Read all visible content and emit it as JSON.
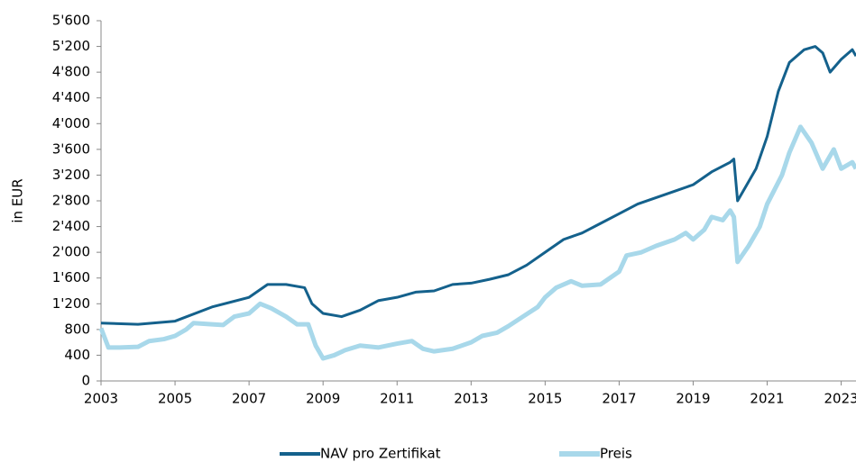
{
  "chart_data": {
    "type": "line",
    "ylabel": "in EUR",
    "xlim": [
      2003,
      2023.4
    ],
    "xticks": [
      2003,
      2005,
      2007,
      2009,
      2011,
      2013,
      2015,
      2017,
      2019,
      2021,
      2023
    ],
    "ylim": [
      0,
      5600
    ],
    "yticks": [
      0,
      400,
      800,
      {
        "value": 1200,
        "label": "1'200"
      },
      {
        "value": 1600,
        "label": "1'600"
      },
      {
        "value": 2000,
        "label": "2'000"
      },
      {
        "value": 2400,
        "label": "2'400"
      },
      {
        "value": 2800,
        "label": "2'800"
      },
      {
        "value": 3200,
        "label": "3'200"
      },
      {
        "value": 3600,
        "label": "3'600"
      },
      {
        "value": 4000,
        "label": "4'000"
      },
      {
        "value": 4400,
        "label": "4'400"
      },
      {
        "value": 4800,
        "label": "4'800"
      },
      {
        "value": 5200,
        "label": "5'200"
      },
      {
        "value": 5600,
        "label": "5'600"
      }
    ],
    "legend": "bottom",
    "series": [
      {
        "name": "NAV pro Zertifikat",
        "color": "#14618c",
        "x": [
          2003,
          2004,
          2005,
          2006,
          2007,
          2007.5,
          2008,
          2008.5,
          2008.7,
          2009,
          2009.5,
          2010,
          2010.5,
          2011,
          2011.5,
          2012,
          2012.5,
          2013,
          2013.5,
          2014,
          2014.5,
          2015,
          2015.5,
          2016,
          2016.5,
          2017,
          2017.5,
          2018,
          2018.5,
          2019,
          2019.5,
          2020,
          2020.1,
          2020.2,
          2020.4,
          2020.7,
          2021,
          2021.3,
          2021.6,
          2022,
          2022.3,
          2022.5,
          2022.7,
          2023,
          2023.3,
          2023.4
        ],
        "values": [
          900,
          880,
          930,
          1150,
          1300,
          1500,
          1500,
          1450,
          1200,
          1050,
          1000,
          1100,
          1250,
          1300,
          1380,
          1400,
          1500,
          1520,
          1580,
          1650,
          1800,
          2000,
          2200,
          2300,
          2450,
          2600,
          2750,
          2850,
          2950,
          3050,
          3250,
          3400,
          3450,
          2800,
          3000,
          3300,
          3800,
          4500,
          4950,
          5150,
          5200,
          5100,
          4800,
          5000,
          5150,
          5050
        ]
      },
      {
        "name": "Preis",
        "color": "#a8d8ea",
        "x": [
          2003,
          2003.2,
          2003.5,
          2004,
          2004.3,
          2004.7,
          2005,
          2005.3,
          2005.5,
          2006,
          2006.3,
          2006.6,
          2007,
          2007.3,
          2007.6,
          2008,
          2008.3,
          2008.6,
          2008.8,
          2009,
          2009.3,
          2009.6,
          2010,
          2010.5,
          2011,
          2011.4,
          2011.7,
          2012,
          2012.5,
          2013,
          2013.3,
          2013.7,
          2014,
          2014.4,
          2014.8,
          2015,
          2015.3,
          2015.7,
          2016,
          2016.5,
          2017,
          2017.2,
          2017.6,
          2018,
          2018.5,
          2018.8,
          2019,
          2019.3,
          2019.5,
          2019.8,
          2020,
          2020.1,
          2020.2,
          2020.5,
          2020.8,
          2021,
          2021.4,
          2021.6,
          2021.9,
          2022.2,
          2022.5,
          2022.8,
          2023,
          2023.3,
          2023.4
        ],
        "values": [
          820,
          520,
          520,
          530,
          620,
          650,
          700,
          800,
          900,
          880,
          870,
          1000,
          1050,
          1200,
          1130,
          1000,
          880,
          880,
          550,
          350,
          400,
          480,
          550,
          520,
          580,
          620,
          500,
          460,
          500,
          600,
          700,
          750,
          850,
          1000,
          1150,
          1300,
          1450,
          1550,
          1480,
          1500,
          1700,
          1950,
          2000,
          2100,
          2200,
          2300,
          2200,
          2350,
          2550,
          2500,
          2650,
          2550,
          1850,
          2100,
          2400,
          2750,
          3200,
          3550,
          3950,
          3700,
          3300,
          3600,
          3300,
          3400,
          3300
        ]
      }
    ]
  }
}
